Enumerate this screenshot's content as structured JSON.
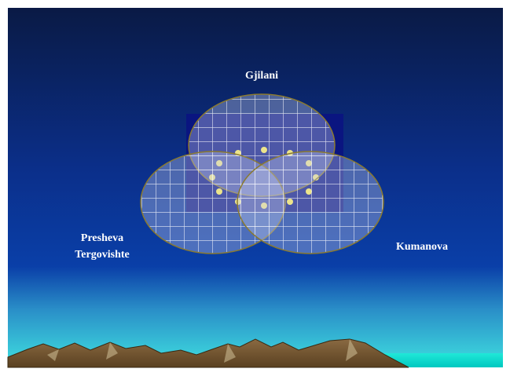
{
  "nodes": [
    {
      "label": "Gjilani"
    },
    {
      "lines": [
        "Presheva",
        "Tergovishte"
      ]
    },
    {
      "label": "Kumanova"
    }
  ]
}
